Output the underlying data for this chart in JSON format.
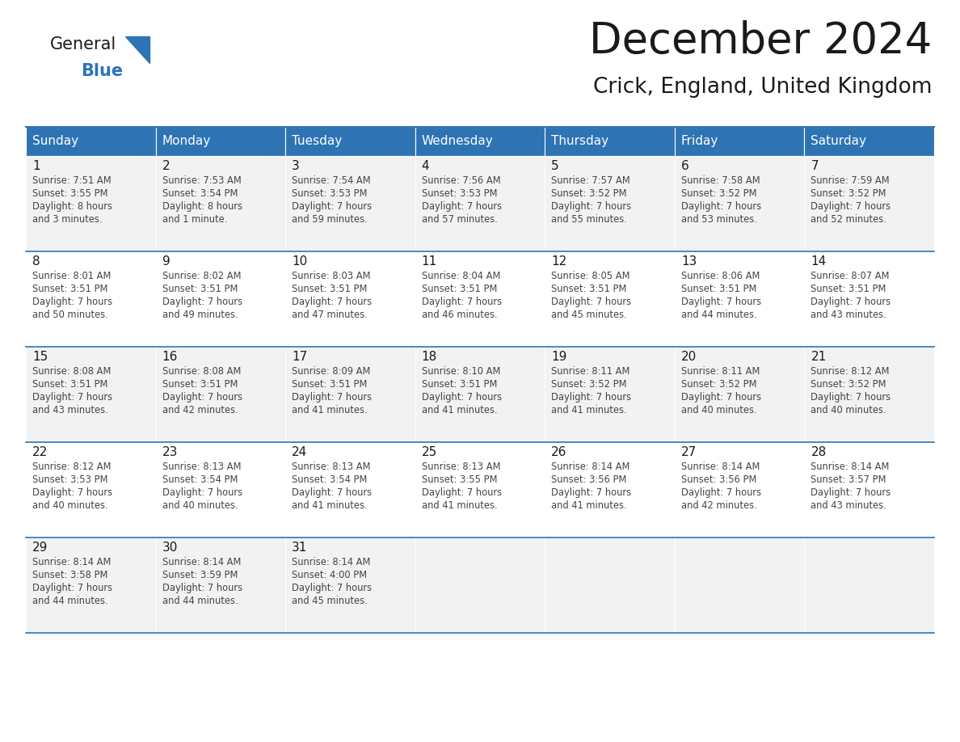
{
  "title": "December 2024",
  "subtitle": "Crick, England, United Kingdom",
  "header_color": "#2E74B5",
  "header_text_color": "#FFFFFF",
  "days_of_week": [
    "Sunday",
    "Monday",
    "Tuesday",
    "Wednesday",
    "Thursday",
    "Friday",
    "Saturday"
  ],
  "cell_bg_even": "#F2F2F2",
  "cell_bg_odd": "#FFFFFF",
  "border_color": "#2E74B5",
  "text_color": "#444444",
  "calendar": [
    [
      {
        "day": 1,
        "sunrise": "7:51 AM",
        "sunset": "3:55 PM",
        "daylight": "8 hours",
        "daylight2": "and 3 minutes."
      },
      {
        "day": 2,
        "sunrise": "7:53 AM",
        "sunset": "3:54 PM",
        "daylight": "8 hours",
        "daylight2": "and 1 minute."
      },
      {
        "day": 3,
        "sunrise": "7:54 AM",
        "sunset": "3:53 PM",
        "daylight": "7 hours",
        "daylight2": "and 59 minutes."
      },
      {
        "day": 4,
        "sunrise": "7:56 AM",
        "sunset": "3:53 PM",
        "daylight": "7 hours",
        "daylight2": "and 57 minutes."
      },
      {
        "day": 5,
        "sunrise": "7:57 AM",
        "sunset": "3:52 PM",
        "daylight": "7 hours",
        "daylight2": "and 55 minutes."
      },
      {
        "day": 6,
        "sunrise": "7:58 AM",
        "sunset": "3:52 PM",
        "daylight": "7 hours",
        "daylight2": "and 53 minutes."
      },
      {
        "day": 7,
        "sunrise": "7:59 AM",
        "sunset": "3:52 PM",
        "daylight": "7 hours",
        "daylight2": "and 52 minutes."
      }
    ],
    [
      {
        "day": 8,
        "sunrise": "8:01 AM",
        "sunset": "3:51 PM",
        "daylight": "7 hours",
        "daylight2": "and 50 minutes."
      },
      {
        "day": 9,
        "sunrise": "8:02 AM",
        "sunset": "3:51 PM",
        "daylight": "7 hours",
        "daylight2": "and 49 minutes."
      },
      {
        "day": 10,
        "sunrise": "8:03 AM",
        "sunset": "3:51 PM",
        "daylight": "7 hours",
        "daylight2": "and 47 minutes."
      },
      {
        "day": 11,
        "sunrise": "8:04 AM",
        "sunset": "3:51 PM",
        "daylight": "7 hours",
        "daylight2": "and 46 minutes."
      },
      {
        "day": 12,
        "sunrise": "8:05 AM",
        "sunset": "3:51 PM",
        "daylight": "7 hours",
        "daylight2": "and 45 minutes."
      },
      {
        "day": 13,
        "sunrise": "8:06 AM",
        "sunset": "3:51 PM",
        "daylight": "7 hours",
        "daylight2": "and 44 minutes."
      },
      {
        "day": 14,
        "sunrise": "8:07 AM",
        "sunset": "3:51 PM",
        "daylight": "7 hours",
        "daylight2": "and 43 minutes."
      }
    ],
    [
      {
        "day": 15,
        "sunrise": "8:08 AM",
        "sunset": "3:51 PM",
        "daylight": "7 hours",
        "daylight2": "and 43 minutes."
      },
      {
        "day": 16,
        "sunrise": "8:08 AM",
        "sunset": "3:51 PM",
        "daylight": "7 hours",
        "daylight2": "and 42 minutes."
      },
      {
        "day": 17,
        "sunrise": "8:09 AM",
        "sunset": "3:51 PM",
        "daylight": "7 hours",
        "daylight2": "and 41 minutes."
      },
      {
        "day": 18,
        "sunrise": "8:10 AM",
        "sunset": "3:51 PM",
        "daylight": "7 hours",
        "daylight2": "and 41 minutes."
      },
      {
        "day": 19,
        "sunrise": "8:11 AM",
        "sunset": "3:52 PM",
        "daylight": "7 hours",
        "daylight2": "and 41 minutes."
      },
      {
        "day": 20,
        "sunrise": "8:11 AM",
        "sunset": "3:52 PM",
        "daylight": "7 hours",
        "daylight2": "and 40 minutes."
      },
      {
        "day": 21,
        "sunrise": "8:12 AM",
        "sunset": "3:52 PM",
        "daylight": "7 hours",
        "daylight2": "and 40 minutes."
      }
    ],
    [
      {
        "day": 22,
        "sunrise": "8:12 AM",
        "sunset": "3:53 PM",
        "daylight": "7 hours",
        "daylight2": "and 40 minutes."
      },
      {
        "day": 23,
        "sunrise": "8:13 AM",
        "sunset": "3:54 PM",
        "daylight": "7 hours",
        "daylight2": "and 40 minutes."
      },
      {
        "day": 24,
        "sunrise": "8:13 AM",
        "sunset": "3:54 PM",
        "daylight": "7 hours",
        "daylight2": "and 41 minutes."
      },
      {
        "day": 25,
        "sunrise": "8:13 AM",
        "sunset": "3:55 PM",
        "daylight": "7 hours",
        "daylight2": "and 41 minutes."
      },
      {
        "day": 26,
        "sunrise": "8:14 AM",
        "sunset": "3:56 PM",
        "daylight": "7 hours",
        "daylight2": "and 41 minutes."
      },
      {
        "day": 27,
        "sunrise": "8:14 AM",
        "sunset": "3:56 PM",
        "daylight": "7 hours",
        "daylight2": "and 42 minutes."
      },
      {
        "day": 28,
        "sunrise": "8:14 AM",
        "sunset": "3:57 PM",
        "daylight": "7 hours",
        "daylight2": "and 43 minutes."
      }
    ],
    [
      {
        "day": 29,
        "sunrise": "8:14 AM",
        "sunset": "3:58 PM",
        "daylight": "7 hours",
        "daylight2": "and 44 minutes."
      },
      {
        "day": 30,
        "sunrise": "8:14 AM",
        "sunset": "3:59 PM",
        "daylight": "7 hours",
        "daylight2": "and 44 minutes."
      },
      {
        "day": 31,
        "sunrise": "8:14 AM",
        "sunset": "4:00 PM",
        "daylight": "7 hours",
        "daylight2": "and 45 minutes."
      },
      null,
      null,
      null,
      null
    ]
  ],
  "logo_general_color": "#1a1a1a",
  "logo_blue_color": "#2E74B5",
  "fig_width": 11.88,
  "fig_height": 9.18,
  "dpi": 100
}
